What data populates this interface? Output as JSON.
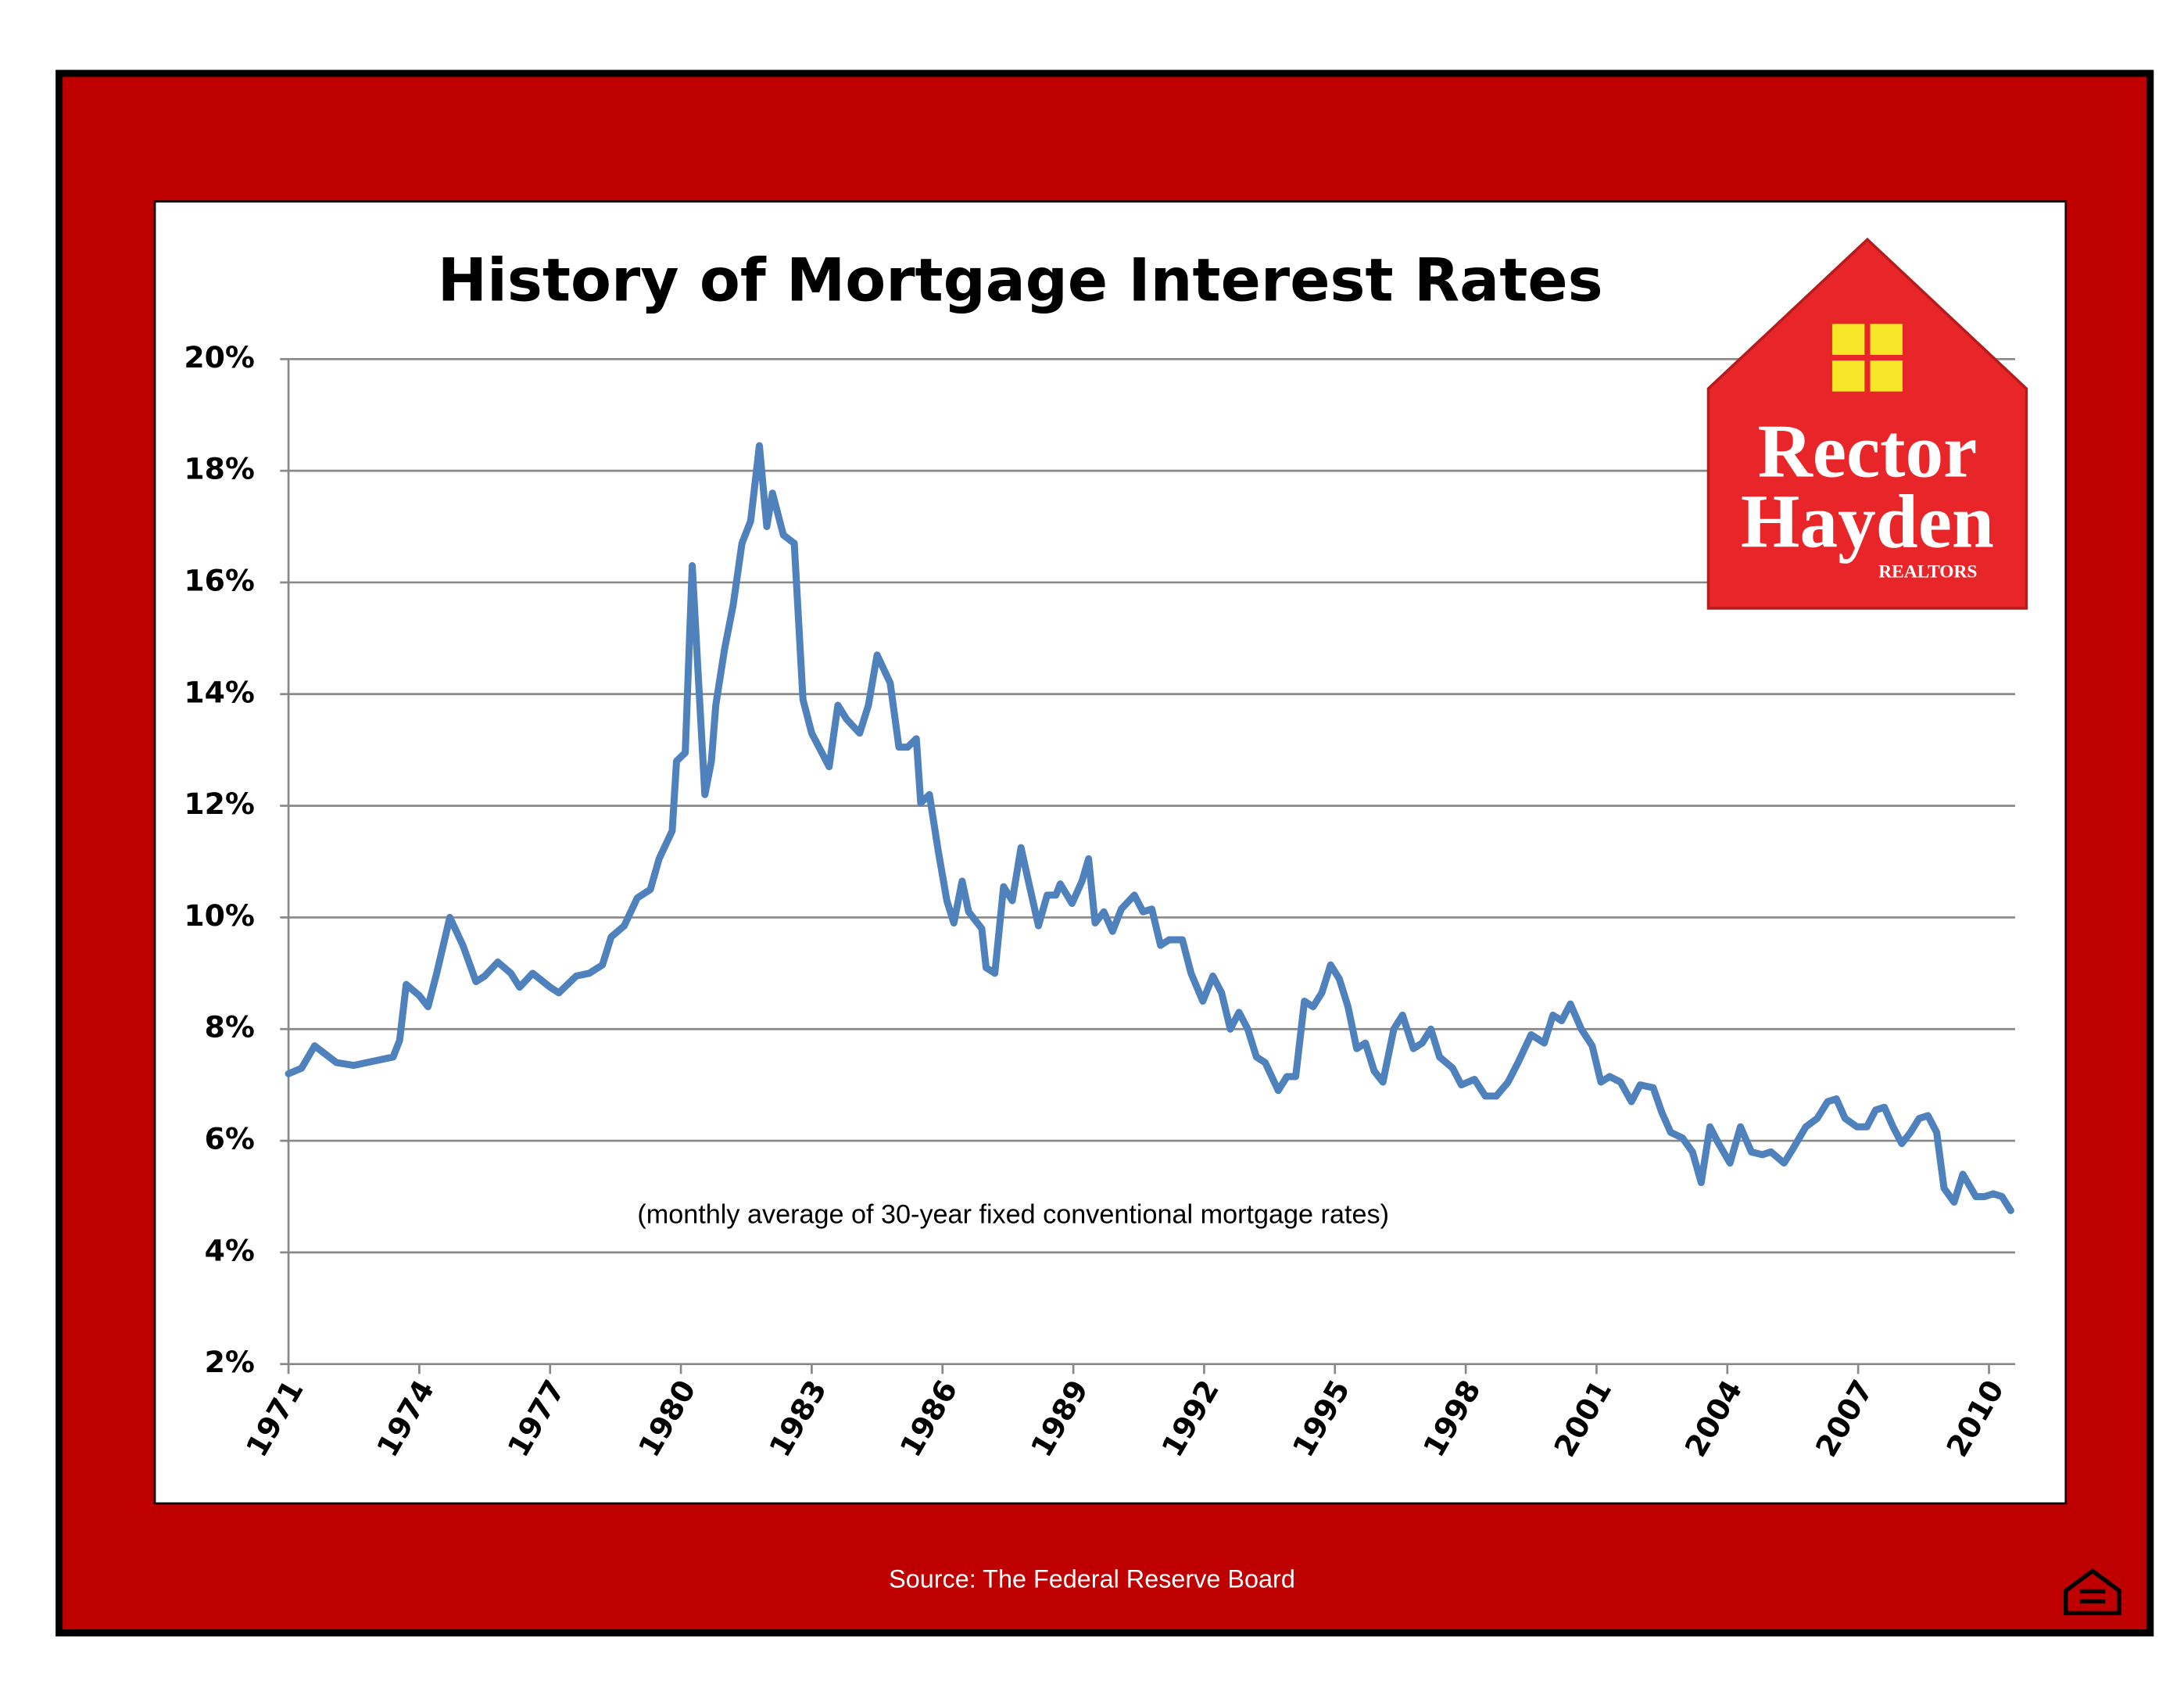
{
  "chart_data": {
    "type": "line",
    "title": "History of Mortgage Interest Rates",
    "note": "(monthly average of 30-year fixed conventional mortgage rates)",
    "source": "Source: The Federal Reserve Board",
    "xlim": [
      1971,
      2010.6
    ],
    "xticks": [
      1971,
      1974,
      1977,
      1980,
      1983,
      1986,
      1989,
      1992,
      1995,
      1998,
      2001,
      2004,
      2007,
      2010
    ],
    "ylim": [
      2,
      20
    ],
    "yticks": [
      {
        "value": 2,
        "label": "2%"
      },
      {
        "value": 4,
        "label": "4%"
      },
      {
        "value": 6,
        "label": "6%"
      },
      {
        "value": 8,
        "label": "8%"
      },
      {
        "value": 10,
        "label": "10%"
      },
      {
        "value": 12,
        "label": "12%"
      },
      {
        "value": 14,
        "label": "14%"
      },
      {
        "value": 16,
        "label": "16%"
      },
      {
        "value": 18,
        "label": "18%"
      },
      {
        "value": 20,
        "label": "20%"
      }
    ],
    "grid": true,
    "series": [
      {
        "color": "#4f81bd",
        "x": [
          1971.0,
          1971.3,
          1971.6,
          1972.1,
          1972.5,
          1973.1,
          1973.4,
          1973.55,
          1973.7,
          1974.0,
          1974.2,
          1974.4,
          1974.7,
          1975.0,
          1975.3,
          1975.5,
          1975.8,
          1976.1,
          1976.3,
          1976.6,
          1977.0,
          1977.2,
          1977.6,
          1977.9,
          1978.2,
          1978.4,
          1978.7,
          1979.0,
          1979.3,
          1979.5,
          1979.8,
          1979.9,
          1980.1,
          1980.26,
          1980.4,
          1980.55,
          1980.7,
          1980.8,
          1981.0,
          1981.2,
          1981.4,
          1981.6,
          1981.8,
          1981.97,
          1982.1,
          1982.35,
          1982.6,
          1982.8,
          1983.0,
          1983.4,
          1983.6,
          1983.8,
          1984.1,
          1984.3,
          1984.5,
          1984.8,
          1985.0,
          1985.2,
          1985.4,
          1985.5,
          1985.7,
          1985.9,
          1986.1,
          1986.26,
          1986.45,
          1986.6,
          1986.9,
          1987.0,
          1987.2,
          1987.4,
          1987.6,
          1987.8,
          1987.97,
          1988.2,
          1988.4,
          1988.6,
          1988.7,
          1988.97,
          1989.2,
          1989.35,
          1989.5,
          1989.7,
          1989.9,
          1990.1,
          1990.4,
          1990.6,
          1990.8,
          1991.0,
          1991.2,
          1991.5,
          1991.7,
          1991.97,
          1992.2,
          1992.4,
          1992.6,
          1992.8,
          1993.0,
          1993.2,
          1993.4,
          1993.7,
          1993.9,
          1994.1,
          1994.3,
          1994.5,
          1994.7,
          1994.9,
          1995.1,
          1995.3,
          1995.5,
          1995.7,
          1995.9,
          1996.1,
          1996.35,
          1996.55,
          1996.8,
          1997.0,
          1997.2,
          1997.4,
          1997.7,
          1997.9,
          1998.2,
          1998.45,
          1998.7,
          1998.97,
          1999.2,
          1999.5,
          1999.8,
          2000.0,
          2000.2,
          2000.4,
          2000.65,
          2000.9,
          2001.1,
          2001.3,
          2001.55,
          2001.8,
          2002.0,
          2002.3,
          2002.5,
          2002.7,
          2002.97,
          2003.2,
          2003.4,
          2003.6,
          2003.8,
          2004.06,
          2004.3,
          2004.55,
          2004.8,
          2005.0,
          2005.3,
          2005.5,
          2005.8,
          2006.06,
          2006.3,
          2006.5,
          2006.7,
          2006.97,
          2007.2,
          2007.4,
          2007.6,
          2007.8,
          2008.0,
          2008.2,
          2008.4,
          2008.6,
          2008.8,
          2008.97,
          2009.2,
          2009.4,
          2009.7,
          2009.9,
          2010.1,
          2010.3,
          2010.5
        ],
        "values": [
          7.2,
          7.3,
          7.7,
          7.4,
          7.35,
          7.45,
          7.5,
          7.8,
          8.8,
          8.6,
          8.4,
          9.0,
          10.0,
          9.5,
          8.85,
          8.95,
          9.2,
          9.0,
          8.75,
          9.0,
          8.75,
          8.65,
          8.95,
          9.0,
          9.15,
          9.65,
          9.85,
          10.35,
          10.5,
          11.05,
          11.55,
          12.8,
          12.95,
          16.3,
          14.3,
          12.2,
          12.8,
          13.8,
          14.8,
          15.6,
          16.7,
          17.1,
          18.45,
          17.0,
          17.6,
          16.85,
          16.7,
          13.9,
          13.3,
          12.7,
          13.8,
          13.55,
          13.3,
          13.8,
          14.7,
          14.2,
          13.05,
          13.05,
          13.2,
          12.05,
          12.2,
          11.2,
          10.3,
          9.9,
          10.65,
          10.1,
          9.8,
          9.1,
          9.0,
          10.55,
          10.3,
          11.25,
          10.65,
          9.85,
          10.4,
          10.4,
          10.6,
          10.25,
          10.65,
          11.05,
          9.9,
          10.1,
          9.75,
          10.15,
          10.4,
          10.1,
          10.15,
          9.5,
          9.6,
          9.6,
          9.0,
          8.5,
          8.95,
          8.65,
          8.0,
          8.3,
          8.0,
          7.5,
          7.4,
          6.9,
          7.15,
          7.15,
          8.5,
          8.4,
          8.65,
          9.15,
          8.9,
          8.4,
          7.65,
          7.75,
          7.25,
          7.05,
          8.0,
          8.25,
          7.65,
          7.75,
          8.0,
          7.5,
          7.3,
          7.0,
          7.1,
          6.8,
          6.8,
          7.05,
          7.4,
          7.9,
          7.75,
          8.25,
          8.15,
          8.45,
          8.0,
          7.7,
          7.05,
          7.15,
          7.05,
          6.7,
          7.0,
          6.95,
          6.5,
          6.15,
          6.05,
          5.8,
          5.25,
          6.25,
          5.95,
          5.6,
          6.25,
          5.8,
          5.75,
          5.8,
          5.6,
          5.85,
          6.25,
          6.4,
          6.7,
          6.75,
          6.4,
          6.25,
          6.25,
          6.55,
          6.6,
          6.25,
          5.95,
          6.15,
          6.4,
          6.45,
          6.15,
          5.15,
          4.9,
          5.4,
          5.0,
          5.0,
          5.05,
          5.0,
          4.75
        ]
      }
    ]
  },
  "logo": {
    "line1": "Rector",
    "line2": "Hayden",
    "line3": "REALTORS"
  }
}
